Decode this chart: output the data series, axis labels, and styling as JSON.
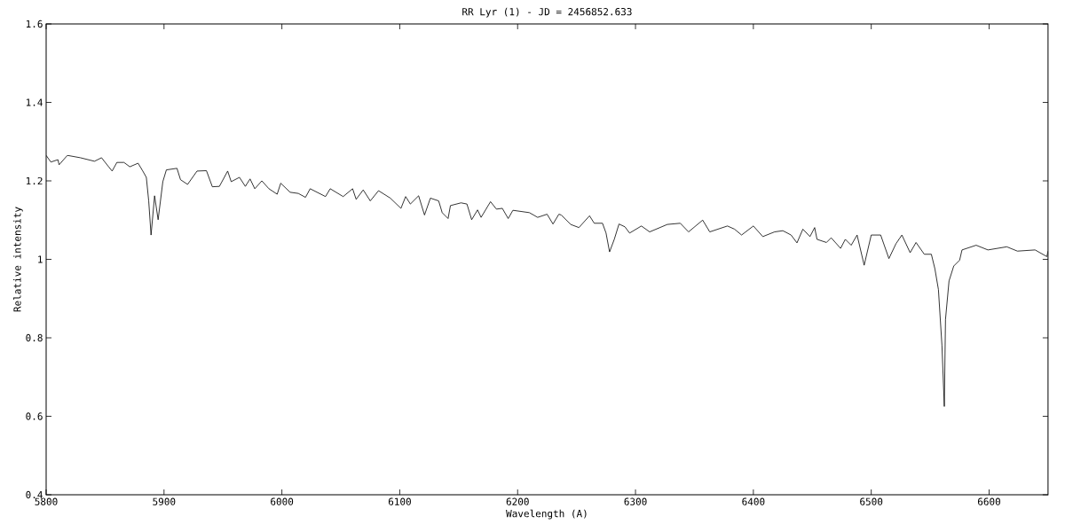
{
  "chart_data": {
    "type": "line",
    "title": "RR Lyr (1) - JD = 2456852.633",
    "xlabel": "Wavelength (A)",
    "ylabel": "Relative intensity",
    "xlim": [
      5800,
      6650
    ],
    "ylim": [
      0.4,
      1.6
    ],
    "xticks": [
      5800,
      5900,
      6000,
      6100,
      6200,
      6300,
      6400,
      6500,
      6600
    ],
    "yticks": [
      0.4,
      0.6,
      0.8,
      1,
      1.2,
      1.4,
      1.6
    ],
    "marker": "none",
    "line_style": "solid",
    "series": [
      {
        "color": "#000000",
        "x": [
          5800,
          5804,
          5810,
          5811,
          5818,
          5829,
          5841,
          5847,
          5853,
          5856,
          5860,
          5866,
          5871,
          5878,
          5882,
          5885,
          5887,
          5889,
          5892,
          5895,
          5899,
          5902,
          5911,
          5914,
          5920,
          5928,
          5936,
          5941,
          5947,
          5954,
          5957,
          5964,
          5969,
          5973,
          5977,
          5983,
          5989,
          5996,
          5999,
          6007,
          6014,
          6020,
          6024,
          6037,
          6041,
          6052,
          6060,
          6063,
          6069,
          6075,
          6082,
          6092,
          6101,
          6105,
          6109,
          6116,
          6121,
          6126,
          6133,
          6136,
          6141,
          6143,
          6152,
          6157,
          6161,
          6166,
          6169,
          6177,
          6182,
          6187,
          6192,
          6196,
          6210,
          6217,
          6225,
          6230,
          6235,
          6237,
          6245,
          6252,
          6261,
          6265,
          6272,
          6275,
          6278,
          6282,
          6286,
          6291,
          6295,
          6305,
          6312,
          6327,
          6338,
          6345,
          6357,
          6363,
          6378,
          6384,
          6390,
          6400,
          6408,
          6418,
          6425,
          6432,
          6437,
          6442,
          6448,
          6452,
          6454,
          6462,
          6466,
          6474,
          6478,
          6483,
          6488,
          6494,
          6500,
          6508,
          6515,
          6521,
          6526,
          6533,
          6538,
          6545,
          6551,
          6554,
          6557,
          6560,
          6562,
          6563,
          6566,
          6570,
          6575,
          6577,
          6589,
          6599,
          6615,
          6624,
          6639,
          6649,
          6650
        ],
        "values": [
          1.265,
          1.248,
          1.254,
          1.241,
          1.265,
          1.259,
          1.25,
          1.259,
          1.236,
          1.225,
          1.247,
          1.247,
          1.236,
          1.245,
          1.225,
          1.209,
          1.149,
          1.062,
          1.162,
          1.101,
          1.198,
          1.228,
          1.232,
          1.203,
          1.191,
          1.225,
          1.226,
          1.185,
          1.186,
          1.225,
          1.198,
          1.209,
          1.186,
          1.205,
          1.18,
          1.2,
          1.18,
          1.166,
          1.194,
          1.171,
          1.168,
          1.158,
          1.18,
          1.16,
          1.18,
          1.16,
          1.18,
          1.153,
          1.177,
          1.149,
          1.175,
          1.156,
          1.13,
          1.16,
          1.141,
          1.162,
          1.113,
          1.156,
          1.149,
          1.119,
          1.104,
          1.137,
          1.144,
          1.141,
          1.101,
          1.126,
          1.107,
          1.147,
          1.128,
          1.13,
          1.104,
          1.125,
          1.119,
          1.107,
          1.115,
          1.09,
          1.115,
          1.113,
          1.089,
          1.081,
          1.111,
          1.092,
          1.092,
          1.067,
          1.019,
          1.051,
          1.09,
          1.083,
          1.067,
          1.085,
          1.07,
          1.089,
          1.092,
          1.07,
          1.1,
          1.07,
          1.085,
          1.077,
          1.062,
          1.085,
          1.058,
          1.07,
          1.073,
          1.062,
          1.042,
          1.077,
          1.058,
          1.081,
          1.051,
          1.043,
          1.055,
          1.028,
          1.051,
          1.036,
          1.062,
          0.985,
          1.062,
          1.062,
          1.002,
          1.04,
          1.062,
          1.017,
          1.043,
          1.013,
          1.013,
          0.976,
          0.923,
          0.78,
          0.625,
          0.847,
          0.945,
          0.983,
          0.998,
          1.024,
          1.036,
          1.024,
          1.032,
          1.021,
          1.024,
          1.007,
          1.021
        ]
      }
    ]
  }
}
